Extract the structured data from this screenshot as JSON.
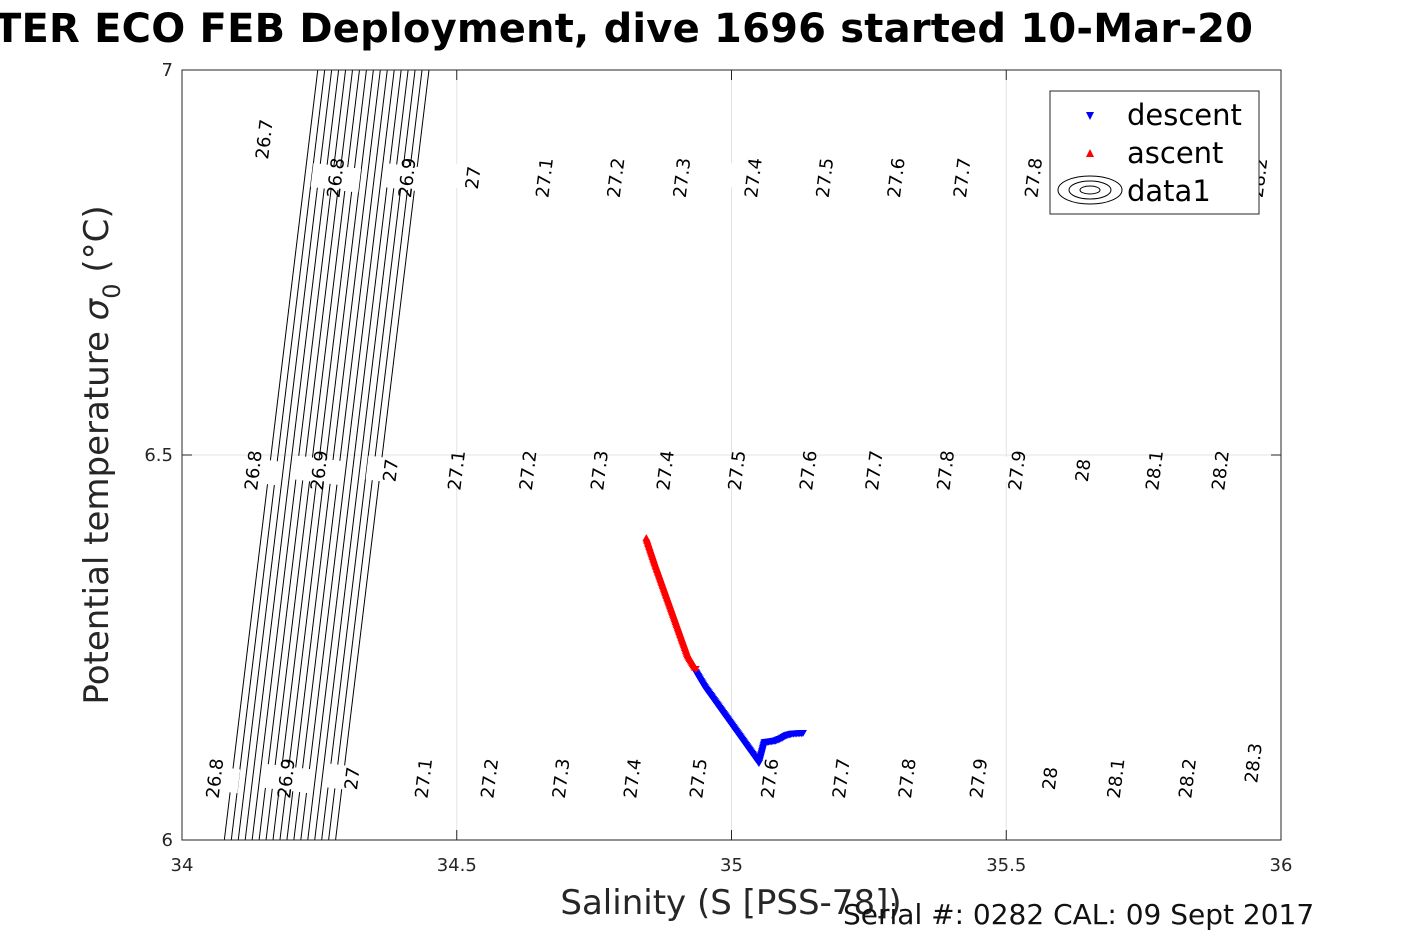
{
  "title": "TER ECO FEB Deployment, dive 1696 started 10-Mar-20",
  "footer": "Serial #: 0282  CAL: 09 Sept 2017",
  "chart_data": {
    "type": "scatter",
    "xlabel": "Salinity (S [PSS-78])",
    "ylabel_main": "Potential temperature ",
    "ylabel_sigma": "σ",
    "ylabel_sub": "0",
    "ylabel_unit": " (°C)",
    "xlim": [
      34,
      36
    ],
    "ylim": [
      6,
      7
    ],
    "xticks": [
      34,
      34.5,
      35,
      35.5,
      36
    ],
    "xtick_labels": [
      "34",
      "34.5",
      "35",
      "35.5",
      "36"
    ],
    "yticks": [
      6,
      6.5,
      7
    ],
    "ytick_labels": [
      "6",
      "6.5",
      "7"
    ],
    "grid": true,
    "legend_position": "top-right",
    "legend": [
      "descent",
      "ascent",
      "data1"
    ],
    "series": [
      {
        "name": "descent",
        "color": "#0000ff",
        "marker": "triangle-down",
        "points": [
          [
            34.935,
            6.218
          ],
          [
            34.95,
            6.2
          ],
          [
            34.97,
            6.18
          ],
          [
            34.99,
            6.16
          ],
          [
            35.01,
            6.14
          ],
          [
            35.03,
            6.12
          ],
          [
            35.05,
            6.1
          ],
          [
            35.06,
            6.127
          ],
          [
            35.07,
            6.128
          ],
          [
            35.08,
            6.129
          ],
          [
            35.09,
            6.132
          ],
          [
            35.1,
            6.136
          ],
          [
            35.11,
            6.138
          ],
          [
            35.13,
            6.139
          ]
        ]
      },
      {
        "name": "ascent",
        "color": "#ff0000",
        "marker": "triangle-up",
        "points": [
          [
            34.845,
            6.392
          ],
          [
            34.86,
            6.36
          ],
          [
            34.875,
            6.33
          ],
          [
            34.89,
            6.3
          ],
          [
            34.905,
            6.27
          ],
          [
            34.92,
            6.24
          ],
          [
            34.935,
            6.222
          ]
        ]
      }
    ],
    "contour_levels": [
      26.7,
      26.8,
      26.9,
      27,
      27.1,
      27.2,
      27.3,
      27.4,
      27.5,
      27.6,
      27.7,
      27.8,
      27.9,
      28,
      28.1,
      28.2,
      28.3
    ],
    "contour_labels": [
      {
        "text": "26.7",
        "s": 34.15,
        "t": 6.91
      },
      {
        "text": "26.8",
        "s": 34.28,
        "t": 6.86
      },
      {
        "text": "26.9",
        "s": 34.41,
        "t": 6.86
      },
      {
        "text": "27",
        "s": 34.53,
        "t": 6.86
      },
      {
        "text": "27.1",
        "s": 34.66,
        "t": 6.86
      },
      {
        "text": "27.2",
        "s": 34.79,
        "t": 6.86
      },
      {
        "text": "27.3",
        "s": 34.91,
        "t": 6.86
      },
      {
        "text": "27.4",
        "s": 35.04,
        "t": 6.86
      },
      {
        "text": "27.5",
        "s": 35.17,
        "t": 6.86
      },
      {
        "text": "27.6",
        "s": 35.3,
        "t": 6.86
      },
      {
        "text": "27.7",
        "s": 35.42,
        "t": 6.86
      },
      {
        "text": "27.8",
        "s": 35.55,
        "t": 6.86
      },
      {
        "text": "27.9",
        "s": 35.68,
        "t": 6.86
      },
      {
        "text": "28.2",
        "s": 35.96,
        "t": 6.86
      },
      {
        "text": "26.8",
        "s": 34.13,
        "t": 6.48
      },
      {
        "text": "26.9",
        "s": 34.25,
        "t": 6.48
      },
      {
        "text": "27",
        "s": 34.38,
        "t": 6.48
      },
      {
        "text": "27.1",
        "s": 34.5,
        "t": 6.48
      },
      {
        "text": "27.2",
        "s": 34.63,
        "t": 6.48
      },
      {
        "text": "27.3",
        "s": 34.76,
        "t": 6.48
      },
      {
        "text": "27.4",
        "s": 34.88,
        "t": 6.48
      },
      {
        "text": "27.5",
        "s": 35.01,
        "t": 6.48
      },
      {
        "text": "27.6",
        "s": 35.14,
        "t": 6.48
      },
      {
        "text": "27.7",
        "s": 35.26,
        "t": 6.48
      },
      {
        "text": "27.8",
        "s": 35.39,
        "t": 6.48
      },
      {
        "text": "27.9",
        "s": 35.52,
        "t": 6.48
      },
      {
        "text": "28",
        "s": 35.64,
        "t": 6.48
      },
      {
        "text": "28.1",
        "s": 35.77,
        "t": 6.48
      },
      {
        "text": "28.2",
        "s": 35.89,
        "t": 6.48
      },
      {
        "text": "26.8",
        "s": 34.06,
        "t": 6.08
      },
      {
        "text": "26.9",
        "s": 34.19,
        "t": 6.08
      },
      {
        "text": "27",
        "s": 34.31,
        "t": 6.08
      },
      {
        "text": "27.1",
        "s": 34.44,
        "t": 6.08
      },
      {
        "text": "27.2",
        "s": 34.56,
        "t": 6.08
      },
      {
        "text": "27.3",
        "s": 34.69,
        "t": 6.08
      },
      {
        "text": "27.4",
        "s": 34.82,
        "t": 6.08
      },
      {
        "text": "27.5",
        "s": 34.94,
        "t": 6.08
      },
      {
        "text": "27.6",
        "s": 35.07,
        "t": 6.08
      },
      {
        "text": "27.7",
        "s": 35.2,
        "t": 6.08
      },
      {
        "text": "27.8",
        "s": 35.32,
        "t": 6.08
      },
      {
        "text": "27.9",
        "s": 35.45,
        "t": 6.08
      },
      {
        "text": "28",
        "s": 35.58,
        "t": 6.08
      },
      {
        "text": "28.1",
        "s": 35.7,
        "t": 6.08
      },
      {
        "text": "28.2",
        "s": 35.83,
        "t": 6.08
      },
      {
        "text": "28.3",
        "s": 35.95,
        "t": 6.1
      }
    ]
  }
}
